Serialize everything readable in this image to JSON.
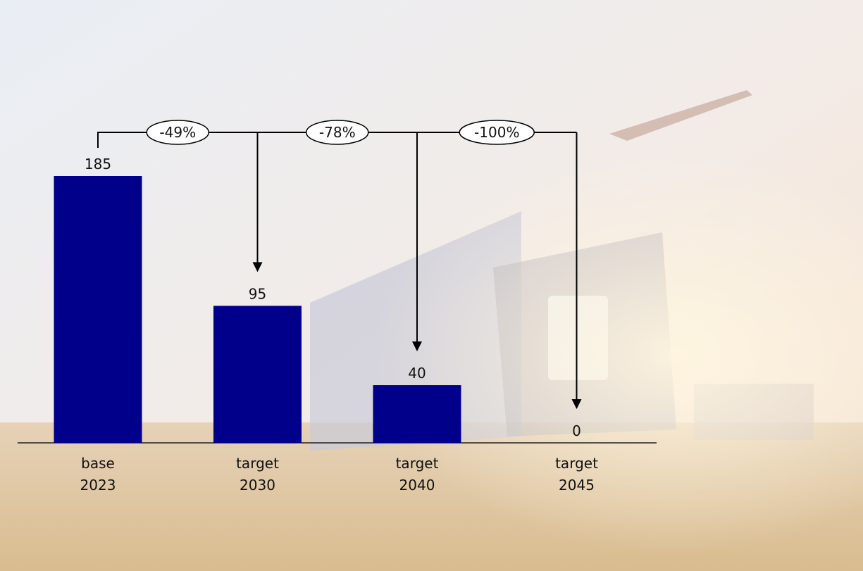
{
  "chart_data": {
    "type": "bar",
    "categories": [
      "base 2023",
      "target 2030",
      "target 2040",
      "target 2045"
    ],
    "values": [
      185,
      95,
      40,
      0
    ],
    "color": "#00008b",
    "annotations": [
      "-49%",
      "-78%",
      "-100%"
    ]
  }
}
